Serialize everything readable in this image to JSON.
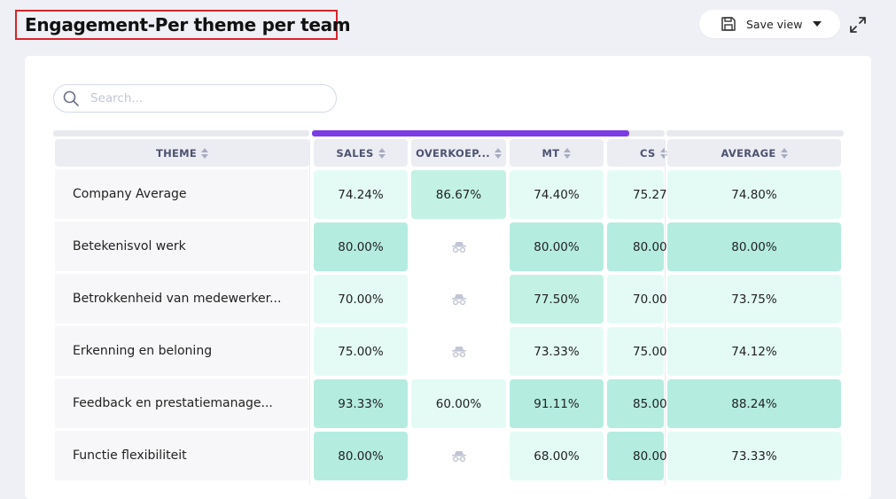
{
  "header": {
    "title": "Engagement-Per theme per team",
    "save_view_label": "Save view"
  },
  "search": {
    "placeholder": "Search..."
  },
  "columns": {
    "theme": "THEME",
    "sales": "SALES",
    "overkoep": "OVERKOEP...",
    "mt": "MT",
    "cs": "CS",
    "average": "AVERAGE"
  },
  "rows": [
    {
      "theme": "Company Average",
      "sales": "74.24%",
      "overkoep": "86.67%",
      "mt": "74.40%",
      "cs": "75.27",
      "average": "74.80%"
    },
    {
      "theme": "Betekenisvol werk",
      "sales": "80.00%",
      "overkoep": null,
      "mt": "80.00%",
      "cs": "80.00",
      "average": "80.00%"
    },
    {
      "theme": "Betrokkenheid van medewerker...",
      "sales": "70.00%",
      "overkoep": null,
      "mt": "77.50%",
      "cs": "70.00",
      "average": "73.75%"
    },
    {
      "theme": "Erkenning en beloning",
      "sales": "75.00%",
      "overkoep": null,
      "mt": "73.33%",
      "cs": "75.00",
      "average": "74.12%"
    },
    {
      "theme": "Feedback en prestatiemanage...",
      "sales": "93.33%",
      "overkoep": "60.00%",
      "mt": "91.11%",
      "cs": "85.00",
      "average": "88.24%"
    },
    {
      "theme": "Functie flexibiliteit",
      "sales": "80.00%",
      "overkoep": null,
      "mt": "68.00%",
      "cs": "80.00",
      "average": "73.33%"
    }
  ],
  "colors": {
    "accent": "#7b3ce4",
    "title_border": "#d9232a",
    "cell_light": "#e4fbf5",
    "cell_mid": "#c3f2e4",
    "cell_dark": "#b4ece0"
  }
}
